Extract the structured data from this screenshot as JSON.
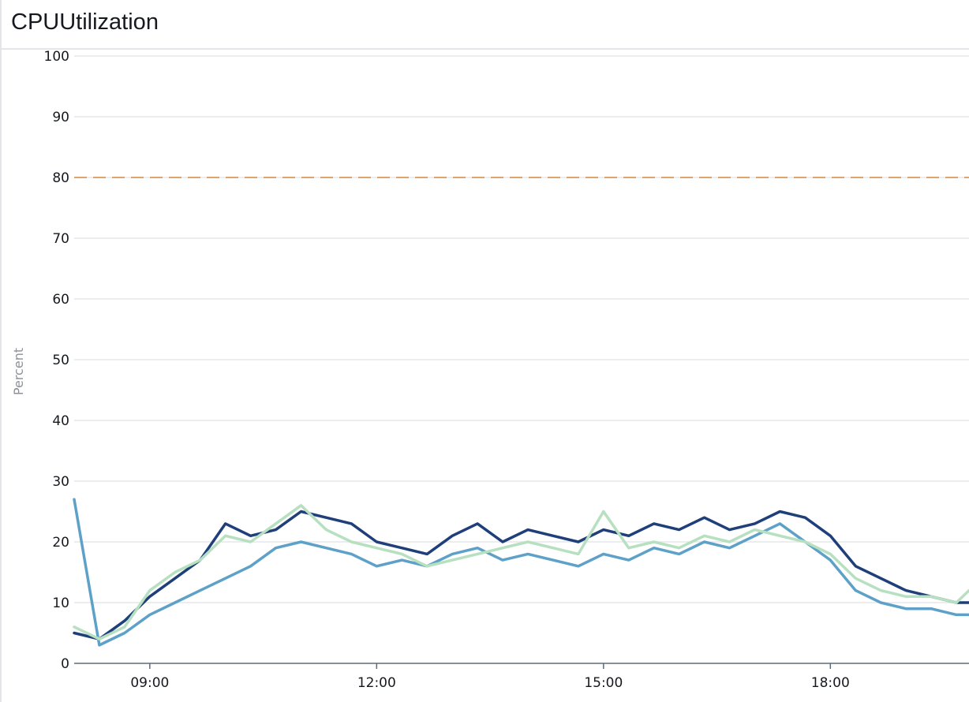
{
  "widget": {
    "title": "CPUUtilization"
  },
  "chart_data": {
    "type": "line",
    "title": "CPUUtilization",
    "ylabel": "Percent",
    "xlabel": "",
    "ylim": [
      0,
      100
    ],
    "yticks": [
      0,
      10,
      20,
      30,
      40,
      50,
      60,
      70,
      80,
      90,
      100
    ],
    "xlim": [
      "08:00",
      "19:50"
    ],
    "xticks": [
      "09:00",
      "12:00",
      "15:00",
      "18:00"
    ],
    "grid": true,
    "legend": "none",
    "threshold": {
      "value": 80,
      "style": "dashed",
      "color": "#e0a36b"
    },
    "colors": {
      "dark": "#1f3f7a",
      "mid": "#5ea1c8",
      "light": "#b7e0c0",
      "grid": "#e6e7e9",
      "axis": "#5f6b7a"
    },
    "x": [
      "08:00",
      "08:20",
      "08:40",
      "09:00",
      "09:20",
      "09:40",
      "10:00",
      "10:20",
      "10:40",
      "11:00",
      "11:20",
      "11:40",
      "12:00",
      "12:20",
      "12:40",
      "13:00",
      "13:20",
      "13:40",
      "14:00",
      "14:20",
      "14:40",
      "15:00",
      "15:20",
      "15:40",
      "16:00",
      "16:20",
      "16:40",
      "17:00",
      "17:20",
      "17:40",
      "18:00",
      "18:20",
      "18:40",
      "19:00",
      "19:20",
      "19:40",
      "19:50"
    ],
    "series": [
      {
        "color": "#1f3f7a",
        "values": [
          5,
          4,
          7,
          11,
          14,
          17,
          23,
          21,
          22,
          25,
          24,
          23,
          20,
          19,
          18,
          21,
          23,
          20,
          22,
          21,
          20,
          22,
          21,
          23,
          22,
          24,
          22,
          23,
          25,
          24,
          21,
          16,
          14,
          12,
          11,
          10,
          10
        ]
      },
      {
        "color": "#5ea1c8",
        "values": [
          27,
          3,
          5,
          8,
          10,
          12,
          14,
          16,
          19,
          20,
          19,
          18,
          16,
          17,
          16,
          18,
          19,
          17,
          18,
          17,
          16,
          18,
          17,
          19,
          18,
          20,
          19,
          21,
          23,
          20,
          17,
          12,
          10,
          9,
          9,
          8,
          8
        ]
      },
      {
        "color": "#b7e0c0",
        "values": [
          6,
          4,
          6,
          12,
          15,
          17,
          21,
          20,
          23,
          26,
          22,
          20,
          19,
          18,
          16,
          17,
          18,
          19,
          20,
          19,
          18,
          25,
          19,
          20,
          19,
          21,
          20,
          22,
          21,
          20,
          18,
          14,
          12,
          11,
          11,
          10,
          12
        ]
      }
    ]
  }
}
